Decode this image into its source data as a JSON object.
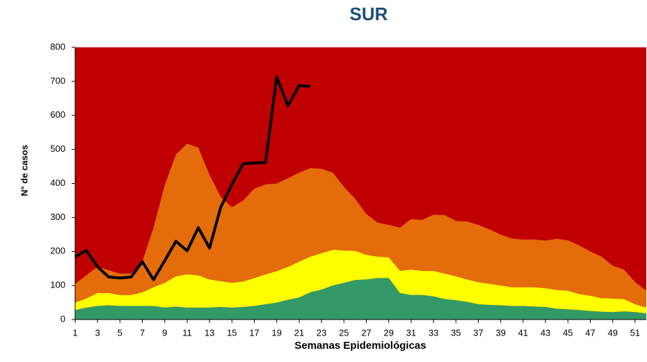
{
  "chart_data": {
    "type": "area",
    "title": "SUR",
    "x_label": "Semanas Epidemiológicas",
    "y_label": "N° de casos",
    "plot_background": "#c00000",
    "x": [
      1,
      2,
      3,
      4,
      5,
      6,
      7,
      8,
      9,
      10,
      11,
      12,
      13,
      14,
      15,
      16,
      17,
      18,
      19,
      20,
      21,
      22,
      23,
      24,
      25,
      26,
      27,
      28,
      29,
      30,
      31,
      32,
      33,
      34,
      35,
      36,
      37,
      38,
      39,
      40,
      41,
      42,
      43,
      44,
      45,
      46,
      47,
      48,
      49,
      50,
      51,
      52
    ],
    "xlim": [
      1,
      52
    ],
    "xticks": [
      1,
      3,
      5,
      7,
      9,
      11,
      13,
      15,
      17,
      19,
      21,
      23,
      25,
      27,
      29,
      31,
      33,
      35,
      37,
      39,
      41,
      43,
      45,
      47,
      49,
      51
    ],
    "ylim": [
      0,
      800
    ],
    "yticks": [
      0,
      100,
      200,
      300,
      400,
      500,
      600,
      700,
      800
    ],
    "series": [
      {
        "kind": "stacked-area",
        "color": "#339966",
        "values": [
          28,
          35,
          40,
          42,
          40,
          40,
          40,
          40,
          35,
          38,
          35,
          35,
          35,
          37,
          35,
          37,
          40,
          45,
          50,
          58,
          65,
          80,
          88,
          100,
          108,
          116,
          118,
          122,
          122,
          78,
          72,
          72,
          68,
          60,
          57,
          52,
          45,
          43,
          42,
          40,
          40,
          38,
          37,
          32,
          30,
          28,
          25,
          23,
          22,
          24,
          22,
          18
        ]
      },
      {
        "kind": "stacked-area",
        "color": "#ffff00",
        "values": [
          22,
          27,
          38,
          36,
          32,
          32,
          40,
          55,
          73,
          89,
          98,
          95,
          83,
          76,
          73,
          75,
          82,
          88,
          92,
          97,
          105,
          105,
          107,
          105,
          95,
          86,
          72,
          63,
          61,
          65,
          75,
          71,
          75,
          75,
          70,
          66,
          65,
          62,
          58,
          55,
          55,
          57,
          55,
          55,
          55,
          47,
          45,
          40,
          40,
          36,
          23,
          17
        ]
      },
      {
        "kind": "stacked-area",
        "color": "#e46c0a",
        "values": [
          55,
          68,
          77,
          67,
          63,
          63,
          90,
          175,
          287,
          358,
          384,
          375,
          307,
          247,
          222,
          238,
          263,
          264,
          258,
          260,
          262,
          260,
          248,
          227,
          187,
          153,
          120,
          100,
          95,
          127,
          148,
          150,
          165,
          172,
          163,
          170,
          168,
          160,
          150,
          143,
          140,
          140,
          140,
          150,
          148,
          143,
          130,
          122,
          96,
          87,
          65,
          50
        ]
      },
      {
        "kind": "line",
        "color": "#000000",
        "values": [
          185,
          203,
          155,
          125,
          122,
          125,
          170,
          117,
          173,
          230,
          202,
          270,
          210,
          330,
          397,
          458,
          460,
          462,
          713,
          628,
          688,
          685,
          null,
          null,
          null,
          null,
          null,
          null,
          null,
          null,
          null,
          null,
          null,
          null,
          null,
          null,
          null,
          null,
          null,
          null,
          null,
          null,
          null,
          null,
          null,
          null,
          null,
          null,
          null,
          null,
          null,
          null
        ]
      }
    ]
  }
}
